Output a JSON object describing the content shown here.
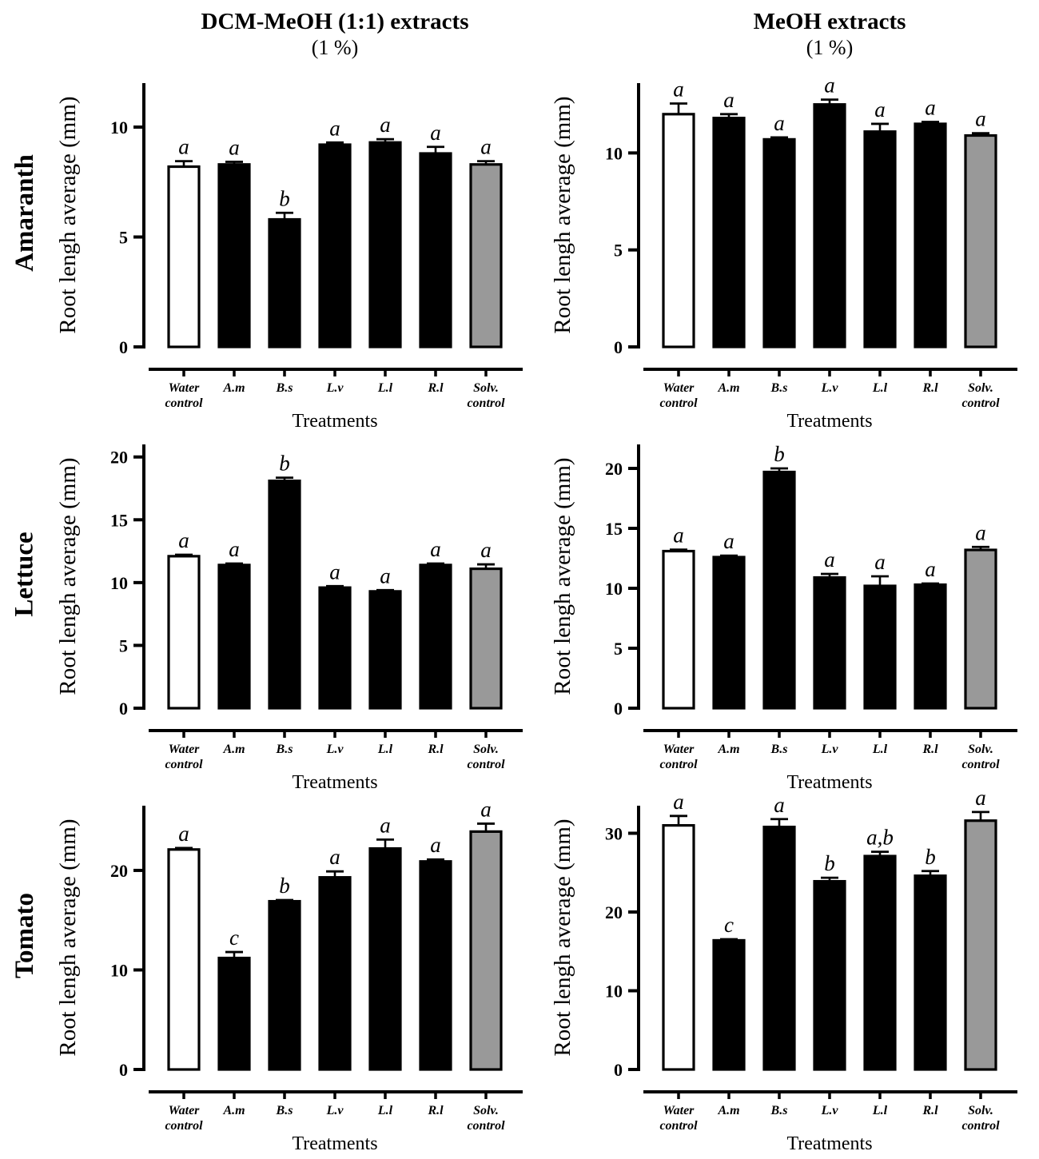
{
  "figure": {
    "columns": [
      {
        "title": "DCM-MeOH (1:1) extracts",
        "subtitle": "(1 %)"
      },
      {
        "title": "MeOH extracts",
        "subtitle": "(1 %)"
      }
    ],
    "rows": [
      {
        "label": "Amaranth"
      },
      {
        "label": "Lettuce"
      },
      {
        "label": "Tomato"
      }
    ],
    "colors": {
      "bar_black": "#000000",
      "bar_white": "#ffffff",
      "bar_gray": "#999999",
      "axis": "#000000"
    }
  },
  "chart_data": [
    {
      "type": "bar",
      "panel": "Amaranth / DCM-MeOH (1:1) extracts (1 %)",
      "categories": [
        "Water\ncontrol",
        "A.m",
        "B.s",
        "L.v",
        "L.l",
        "R.l",
        "Solv.\ncontrol"
      ],
      "values": [
        8.2,
        8.3,
        5.8,
        9.2,
        9.3,
        8.8,
        8.3
      ],
      "errors": [
        0.25,
        0.12,
        0.3,
        0.1,
        0.15,
        0.3,
        0.15
      ],
      "sig_letters": [
        "a",
        "a",
        "b",
        "a",
        "a",
        "a",
        "a"
      ],
      "bar_fills": [
        "#ffffff",
        "#000000",
        "#000000",
        "#000000",
        "#000000",
        "#000000",
        "#999999"
      ],
      "title": "",
      "xlabel": "Treatments",
      "ylabel": "Root lengh average (mm)",
      "yticks": [
        0,
        5,
        10
      ],
      "ylim": [
        0,
        12
      ],
      "grid": false,
      "legend": "none"
    },
    {
      "type": "bar",
      "panel": "Amaranth / MeOH extracts (1 %)",
      "categories": [
        "Water\ncontrol",
        "A.m",
        "B.s",
        "L.v",
        "L.l",
        "R.l",
        "Solv.\ncontrol"
      ],
      "values": [
        12.0,
        11.8,
        10.7,
        12.5,
        11.1,
        11.5,
        10.9
      ],
      "errors": [
        0.55,
        0.2,
        0.1,
        0.25,
        0.4,
        0.1,
        0.12
      ],
      "sig_letters": [
        "a",
        "a",
        "a",
        "a",
        "a",
        "a",
        "a"
      ],
      "bar_fills": [
        "#ffffff",
        "#000000",
        "#000000",
        "#000000",
        "#000000",
        "#000000",
        "#999999"
      ],
      "title": "",
      "xlabel": "Treatments",
      "ylabel": "Root lengh average (mm)",
      "yticks": [
        0,
        5,
        10
      ],
      "ylim": [
        0,
        13.6
      ],
      "grid": false,
      "legend": "none"
    },
    {
      "type": "bar",
      "panel": "Lettuce / DCM-MeOH (1:1) extracts (1 %)",
      "categories": [
        "Water\ncontrol",
        "A.m",
        "B.s",
        "L.v",
        "L.l",
        "R.l",
        "Solv.\ncontrol"
      ],
      "values": [
        12.1,
        11.4,
        18.1,
        9.6,
        9.3,
        11.4,
        11.1
      ],
      "errors": [
        0.12,
        0.12,
        0.25,
        0.12,
        0.1,
        0.12,
        0.35
      ],
      "sig_letters": [
        "a",
        "a",
        "b",
        "a",
        "a",
        "a",
        "a"
      ],
      "bar_fills": [
        "#ffffff",
        "#000000",
        "#000000",
        "#000000",
        "#000000",
        "#000000",
        "#999999"
      ],
      "title": "",
      "xlabel": "Treatments",
      "ylabel": "Root lengh average (mm)",
      "yticks": [
        0,
        5,
        10,
        15,
        20
      ],
      "ylim": [
        0,
        21
      ],
      "grid": false,
      "legend": "none"
    },
    {
      "type": "bar",
      "panel": "Lettuce / MeOH extracts (1 %)",
      "categories": [
        "Water\ncontrol",
        "A.m",
        "B.s",
        "L.v",
        "L.l",
        "R.l",
        "Solv.\ncontrol"
      ],
      "values": [
        13.1,
        12.6,
        19.7,
        10.9,
        10.2,
        10.3,
        13.2
      ],
      "errors": [
        0.12,
        0.12,
        0.3,
        0.3,
        0.8,
        0.1,
        0.25
      ],
      "sig_letters": [
        "a",
        "a",
        "b",
        "a",
        "a",
        "a",
        "a"
      ],
      "bar_fills": [
        "#ffffff",
        "#000000",
        "#000000",
        "#000000",
        "#000000",
        "#000000",
        "#999999"
      ],
      "title": "",
      "xlabel": "Treatments",
      "ylabel": "Root lengh average (mm)",
      "yticks": [
        0,
        5,
        10,
        15,
        20
      ],
      "ylim": [
        0,
        22
      ],
      "grid": false,
      "legend": "none"
    },
    {
      "type": "bar",
      "panel": "Tomato / DCM-MeOH (1:1) extracts (1 %)",
      "categories": [
        "Water\ncontrol",
        "A.m",
        "B.s",
        "L.v",
        "L.l",
        "R.l",
        "Solv.\ncontrol"
      ],
      "values": [
        22.1,
        11.2,
        16.9,
        19.3,
        22.2,
        20.9,
        23.9
      ],
      "errors": [
        0.15,
        0.6,
        0.12,
        0.6,
        0.9,
        0.2,
        0.8
      ],
      "sig_letters": [
        "a",
        "c",
        "b",
        "a",
        "a",
        "a",
        "a"
      ],
      "bar_fills": [
        "#ffffff",
        "#000000",
        "#000000",
        "#000000",
        "#000000",
        "#000000",
        "#999999"
      ],
      "title": "",
      "xlabel": "Treatments",
      "ylabel": "Root lengh average (mm)",
      "yticks": [
        0,
        10,
        20
      ],
      "ylim": [
        0,
        26.5
      ],
      "grid": false,
      "legend": "none"
    },
    {
      "type": "bar",
      "panel": "Tomato / MeOH extracts (1 %)",
      "categories": [
        "Water\ncontrol",
        "A.m",
        "B.s",
        "L.v",
        "L.l",
        "R.l",
        "Solv.\ncontrol"
      ],
      "values": [
        31.0,
        16.4,
        30.8,
        23.9,
        27.1,
        24.6,
        31.6
      ],
      "errors": [
        1.2,
        0.15,
        1.0,
        0.45,
        0.55,
        0.6,
        1.1
      ],
      "sig_letters": [
        "a",
        "c",
        "a",
        "b",
        "a,b",
        "b",
        "a"
      ],
      "bar_fills": [
        "#ffffff",
        "#000000",
        "#000000",
        "#000000",
        "#000000",
        "#000000",
        "#999999"
      ],
      "title": "",
      "xlabel": "Treatments",
      "ylabel": "Root lengh average (mm)",
      "yticks": [
        0,
        10,
        20,
        30
      ],
      "ylim": [
        0,
        33.5
      ],
      "grid": false,
      "legend": "none"
    }
  ]
}
